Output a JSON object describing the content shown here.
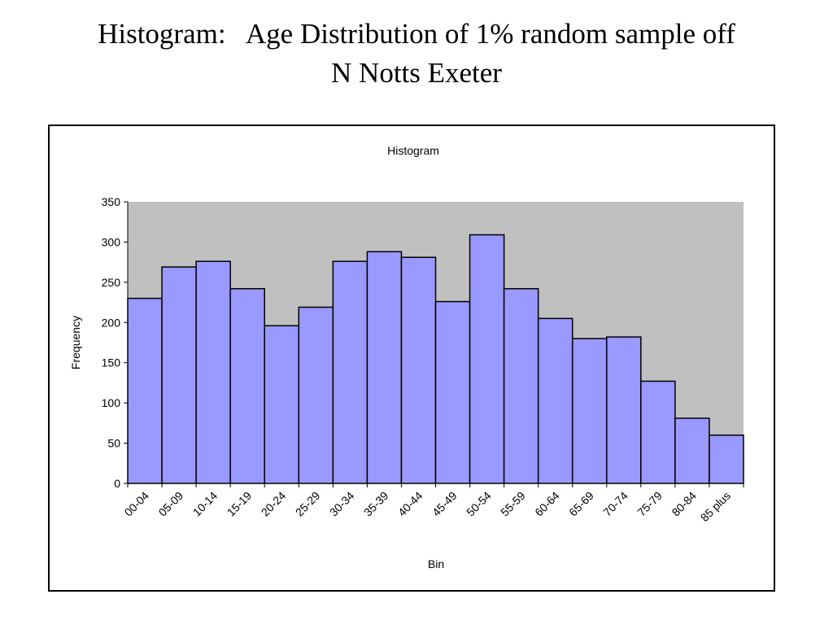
{
  "slide": {
    "title_line1": "Histogram:   Age Distribution of 1% random sample off",
    "title_line2": "N Notts Exeter"
  },
  "chart_data": {
    "type": "bar",
    "title": "Histogram",
    "xlabel": "Bin",
    "ylabel": "Frequency",
    "categories": [
      "00-04",
      "05-09",
      "10-14",
      "15-19",
      "20-24",
      "25-29",
      "30-34",
      "35-39",
      "40-44",
      "45-49",
      "50-54",
      "55-59",
      "60-64",
      "65-69",
      "70-74",
      "75-79",
      "80-84",
      "85 plus"
    ],
    "values": [
      230,
      269,
      276,
      242,
      196,
      219,
      276,
      288,
      281,
      226,
      309,
      242,
      205,
      180,
      182,
      127,
      81,
      60
    ],
    "ylim": [
      0,
      350
    ],
    "yticks": [
      0,
      50,
      100,
      150,
      200,
      250,
      300,
      350
    ],
    "grid": false,
    "legend": "none",
    "colors": {
      "bar_fill": "#9999ff",
      "bar_stroke": "#000000",
      "plot_background": "#c0c0c0"
    }
  }
}
